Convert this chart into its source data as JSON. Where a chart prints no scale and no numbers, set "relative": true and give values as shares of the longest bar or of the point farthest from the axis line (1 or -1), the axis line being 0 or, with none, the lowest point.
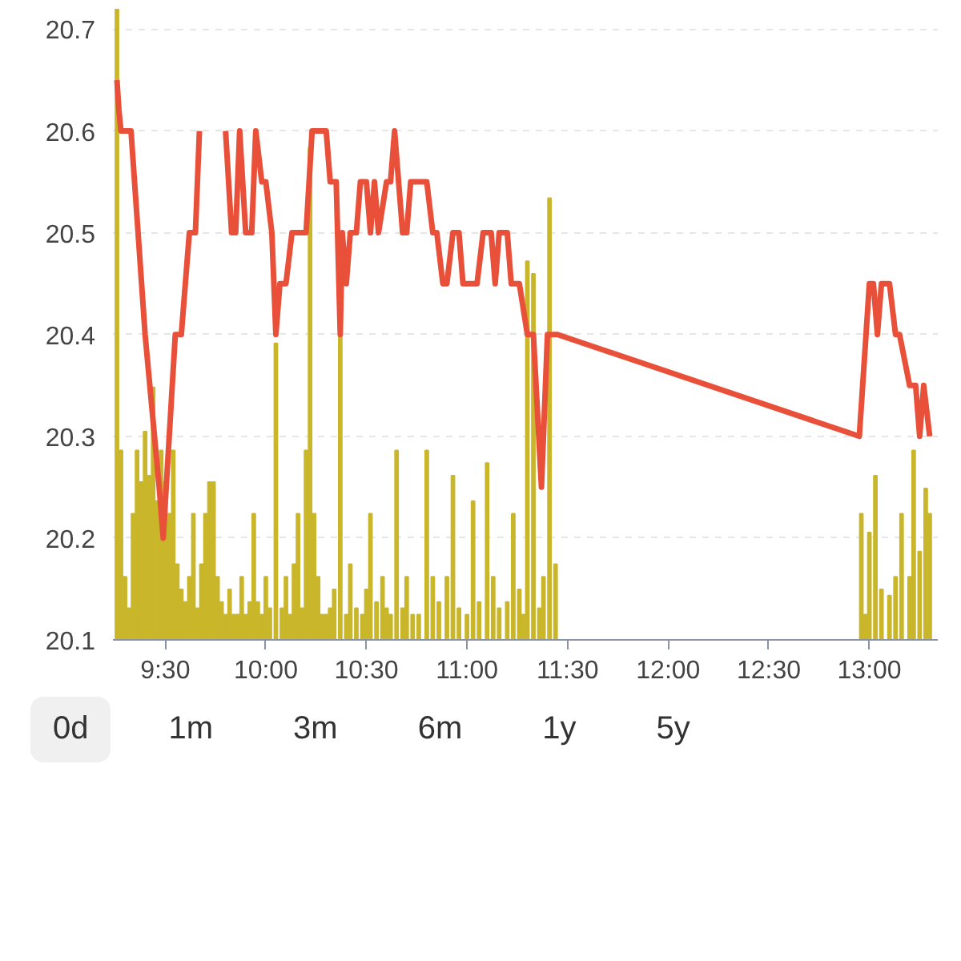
{
  "chart_data": [
    {
      "type": "line",
      "xlim": [
        9.24,
        13.34
      ],
      "ylim": [
        20.1,
        20.72
      ],
      "xticks": [
        {
          "value": 9.5,
          "label": "9:30"
        },
        {
          "value": 10,
          "label": "10:00"
        },
        {
          "value": 10.5,
          "label": "10:30"
        },
        {
          "value": 11,
          "label": "11:00"
        },
        {
          "value": 11.5,
          "label": "11:30"
        },
        {
          "value": 12,
          "label": "12:00"
        },
        {
          "value": 12.5,
          "label": "12:30"
        },
        {
          "value": 13,
          "label": "13:00"
        }
      ],
      "yticks": [
        20.1,
        20.2,
        20.3,
        20.4,
        20.5,
        20.6,
        20.7
      ],
      "grid": "y",
      "annotations": [
        "0d",
        "1m",
        "3m",
        "6m",
        "1y",
        "5y"
      ],
      "series": [
        {
          "color": "#e8503a",
          "x": [
            9.26,
            9.27,
            9.28,
            9.33,
            9.4,
            9.47,
            9.49,
            9.52,
            9.55,
            9.58,
            9.62,
            9.65,
            9.67,
            9.7,
            9.76,
            9.8,
            9.83,
            9.85,
            9.87,
            9.9,
            9.93,
            9.95,
            9.98,
            10.0,
            10.03,
            10.05,
            10.07,
            10.1,
            10.13,
            10.2,
            10.23,
            10.3,
            10.32,
            10.35,
            10.37,
            10.38,
            10.4,
            10.42,
            10.45,
            10.47,
            10.5,
            10.52,
            10.54,
            10.56,
            10.6,
            10.62,
            10.64,
            10.66,
            10.68,
            10.7,
            10.72,
            10.8,
            10.83,
            10.85,
            10.88,
            10.9,
            10.93,
            10.96,
            10.98,
            11.05,
            11.08,
            11.12,
            11.14,
            11.16,
            11.2,
            11.22,
            11.26,
            11.3,
            11.33,
            11.37,
            11.4,
            11.45,
            12.95,
            13.0,
            13.02,
            13.04,
            13.06,
            13.1,
            13.13,
            13.15,
            13.2,
            13.23,
            13.25,
            13.27,
            13.3
          ],
          "values": [
            20.65,
            20.62,
            20.6,
            20.6,
            20.4,
            20.25,
            20.2,
            20.3,
            20.4,
            20.4,
            20.5,
            20.5,
            20.6,
            null,
            null,
            20.6,
            20.5,
            20.5,
            20.6,
            20.5,
            20.5,
            20.6,
            20.55,
            20.55,
            20.5,
            20.4,
            20.45,
            20.45,
            20.5,
            20.5,
            20.6,
            20.6,
            20.55,
            20.55,
            20.4,
            20.5,
            20.45,
            20.5,
            20.5,
            20.55,
            20.55,
            20.5,
            20.55,
            20.5,
            20.55,
            20.55,
            20.6,
            20.55,
            20.5,
            20.5,
            20.55,
            20.55,
            20.5,
            20.5,
            20.45,
            20.45,
            20.5,
            20.5,
            20.45,
            20.45,
            20.5,
            20.5,
            20.45,
            20.5,
            20.5,
            20.45,
            20.45,
            20.4,
            20.4,
            20.25,
            20.4,
            20.4,
            20.3,
            20.45,
            20.45,
            20.4,
            20.45,
            20.45,
            20.4,
            20.4,
            20.35,
            20.35,
            20.3,
            20.35,
            20.3
          ]
        }
      ]
    },
    {
      "type": "bar",
      "relative": true,
      "xlim": [
        9.24,
        13.34
      ],
      "series": [
        {
          "color": "#c9b62a",
          "x": [
            9.26,
            9.28,
            9.3,
            9.32,
            9.34,
            9.36,
            9.38,
            9.4,
            9.42,
            9.44,
            9.46,
            9.48,
            9.5,
            9.52,
            9.54,
            9.56,
            9.58,
            9.6,
            9.62,
            9.64,
            9.66,
            9.68,
            9.7,
            9.72,
            9.74,
            9.76,
            9.78,
            9.8,
            9.82,
            9.84,
            9.86,
            9.88,
            9.9,
            9.92,
            9.94,
            9.96,
            9.98,
            10.0,
            10.02,
            10.05,
            10.08,
            10.1,
            10.12,
            10.14,
            10.16,
            10.18,
            10.2,
            10.22,
            10.24,
            10.26,
            10.28,
            10.3,
            10.32,
            10.34,
            10.37,
            10.4,
            10.42,
            10.45,
            10.48,
            10.5,
            10.52,
            10.55,
            10.58,
            10.6,
            10.62,
            10.65,
            10.68,
            10.7,
            10.73,
            10.76,
            10.8,
            10.83,
            10.86,
            10.9,
            10.93,
            10.96,
            11.0,
            11.03,
            11.06,
            11.1,
            11.13,
            11.16,
            11.2,
            11.23,
            11.26,
            11.28,
            11.3,
            11.33,
            11.36,
            11.38,
            11.41,
            11.44,
            12.96,
            12.98,
            13.0,
            13.03,
            13.06,
            13.1,
            13.13,
            13.16,
            13.2,
            13.22,
            13.25,
            13.28,
            13.3
          ],
          "values": [
            1.0,
            0.3,
            0.1,
            0.05,
            0.2,
            0.3,
            0.25,
            0.33,
            0.26,
            0.4,
            0.22,
            0.3,
            0.25,
            0.2,
            0.3,
            0.12,
            0.08,
            0.06,
            0.1,
            0.2,
            0.05,
            0.12,
            0.2,
            0.25,
            0.25,
            0.1,
            0.06,
            0.04,
            0.08,
            0.04,
            0.04,
            0.1,
            0.04,
            0.06,
            0.2,
            0.06,
            0.04,
            0.1,
            0.05,
            0.47,
            0.05,
            0.1,
            0.04,
            0.12,
            0.2,
            0.05,
            0.3,
            0.78,
            0.2,
            0.1,
            0.04,
            0.04,
            0.05,
            0.08,
            0.48,
            0.04,
            0.12,
            0.05,
            0.04,
            0.08,
            0.2,
            0.06,
            0.1,
            0.05,
            0.04,
            0.3,
            0.05,
            0.1,
            0.04,
            0.04,
            0.3,
            0.1,
            0.06,
            0.1,
            0.26,
            0.05,
            0.04,
            0.22,
            0.06,
            0.28,
            0.1,
            0.05,
            0.06,
            0.2,
            0.08,
            0.04,
            0.6,
            0.58,
            0.05,
            0.1,
            0.7,
            0.12,
            0.2,
            0.04,
            0.17,
            0.26,
            0.08,
            0.07,
            0.1,
            0.2,
            0.1,
            0.3,
            0.14,
            0.24,
            0.2
          ]
        }
      ]
    }
  ]
}
